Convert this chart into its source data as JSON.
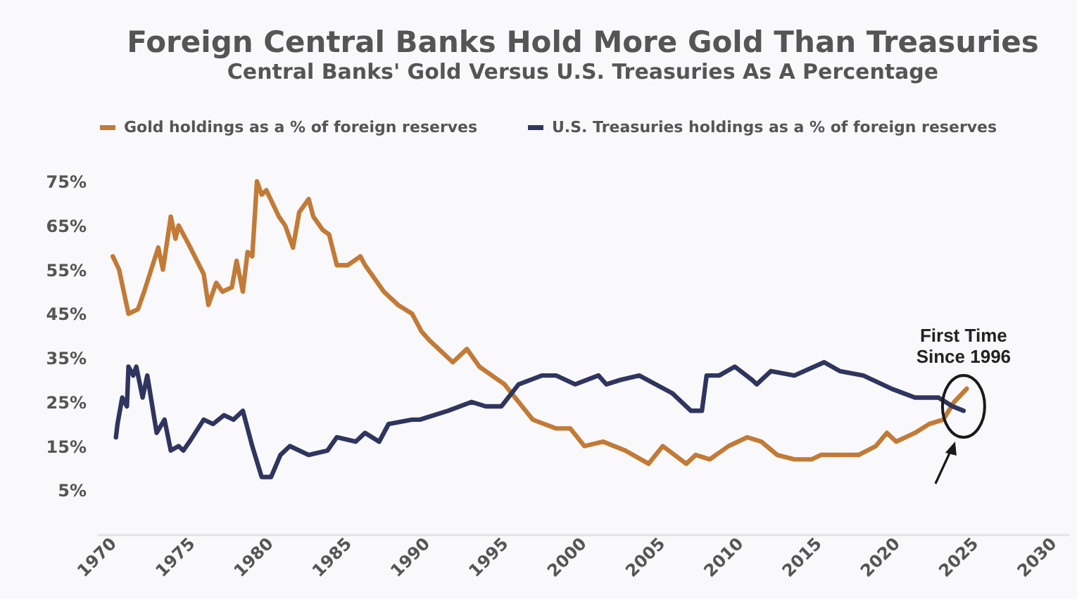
{
  "chart_data": {
    "type": "line",
    "title": "Foreign Central Banks Hold More Gold Than Treasuries",
    "subtitle": "Central Banks' Gold Versus U.S. Treasuries As A Percentage",
    "xlim": [
      1969,
      2031
    ],
    "xticks": [
      1970,
      1975,
      1980,
      1985,
      1990,
      1995,
      2000,
      2005,
      2010,
      2015,
      2020,
      2025,
      2030
    ],
    "ylim": [
      -5,
      75
    ],
    "yticks": [
      {
        "value": 5,
        "label": "5%"
      },
      {
        "value": 15,
        "label": "15%"
      },
      {
        "value": 25,
        "label": "25%"
      },
      {
        "value": 35,
        "label": "35%"
      },
      {
        "value": 45,
        "label": "45%"
      },
      {
        "value": 55,
        "label": "55%"
      },
      {
        "value": 65,
        "label": "65%"
      },
      {
        "value": 75,
        "label": "75%"
      }
    ],
    "grid": false,
    "legend": "top",
    "annotations": [
      {
        "text": "First Time Since 1996",
        "x": 2024.3,
        "y": 24
      }
    ],
    "series": [
      {
        "name": "Gold holdings as a % of foreign reserves",
        "color": "#c27a36",
        "x": [
          1970.0,
          1970.4,
          1970.7,
          1971.0,
          1971.6,
          1972.0,
          1972.9,
          1973.2,
          1973.7,
          1974.0,
          1974.2,
          1974.8,
          1975.8,
          1976.1,
          1976.6,
          1977.0,
          1977.6,
          1977.9,
          1978.3,
          1978.6,
          1978.9,
          1979.2,
          1979.5,
          1979.8,
          1980.6,
          1981.0,
          1981.5,
          1981.9,
          1982.5,
          1982.8,
          1983.4,
          1983.8,
          1984.3,
          1985.0,
          1985.8,
          1986.1,
          1987.3,
          1988.2,
          1989.1,
          1989.7,
          1990.2,
          1991.7,
          1992.6,
          1993.4,
          1995.0,
          1996.8,
          1998.3,
          1999.2,
          2000.1,
          2001.3,
          2002.7,
          2004.2,
          2005.1,
          2006.6,
          2007.2,
          2008.1,
          2009.3,
          2010.5,
          2011.4,
          2012.4,
          2013.5,
          2014.6,
          2015.2,
          2016.4,
          2017.6,
          2018.7,
          2019.4,
          2020.0,
          2021.2,
          2022.1,
          2023.0,
          2023.7,
          2024.5
        ],
        "values": [
          58,
          55,
          50,
          45,
          46,
          50,
          60,
          55,
          67,
          62,
          65,
          61,
          54,
          47,
          52,
          50,
          51,
          57,
          50,
          59,
          58,
          75,
          72,
          73,
          67,
          65,
          60,
          68,
          71,
          67,
          64,
          63,
          56,
          56,
          58,
          56,
          50,
          47,
          45,
          41,
          39,
          34,
          37,
          33,
          29,
          21,
          19,
          19,
          15,
          16,
          14,
          11,
          15,
          11,
          13,
          12,
          15,
          17,
          16,
          13,
          12,
          12,
          13,
          13,
          13,
          15,
          18,
          16,
          18,
          20,
          21,
          25,
          28
        ]
      },
      {
        "name": "U.S. Treasuries holdings as a % of foreign reserves",
        "color": "#2f355f",
        "x": [
          1970.2,
          1970.3,
          1970.6,
          1970.9,
          1971.0,
          1971.3,
          1971.5,
          1971.9,
          1972.2,
          1972.8,
          1973.3,
          1973.7,
          1974.2,
          1974.5,
          1974.9,
          1975.8,
          1976.4,
          1977.1,
          1977.7,
          1978.3,
          1978.9,
          1979.5,
          1980.1,
          1980.7,
          1981.3,
          1982.5,
          1983.7,
          1984.3,
          1985.5,
          1986.1,
          1987.0,
          1987.6,
          1989.1,
          1989.6,
          1991.4,
          1992.9,
          1993.8,
          1994.8,
          1995.9,
          1997.4,
          1998.3,
          1999.5,
          2001.0,
          2001.5,
          2002.4,
          2003.6,
          2005.7,
          2006.9,
          2007.6,
          2007.9,
          2008.7,
          2009.7,
          2010.8,
          2011.1,
          2012.0,
          2013.5,
          2015.4,
          2016.4,
          2017.9,
          2019.7,
          2021.2,
          2022.7,
          2023.6,
          2024.3
        ],
        "values": [
          17,
          20,
          26,
          24,
          33,
          31,
          33,
          26,
          31,
          18,
          21,
          14,
          15,
          14,
          16,
          21,
          20,
          22,
          21,
          23,
          15,
          8,
          8,
          13,
          15,
          13,
          14,
          17,
          16,
          18,
          16,
          20,
          21,
          21,
          23,
          25,
          24,
          24,
          29,
          31,
          31,
          29,
          31,
          29,
          30,
          31,
          27,
          23,
          23,
          31,
          31,
          33,
          30,
          29,
          32,
          31,
          34,
          32,
          31,
          28,
          26,
          26,
          24,
          23
        ]
      }
    ]
  }
}
